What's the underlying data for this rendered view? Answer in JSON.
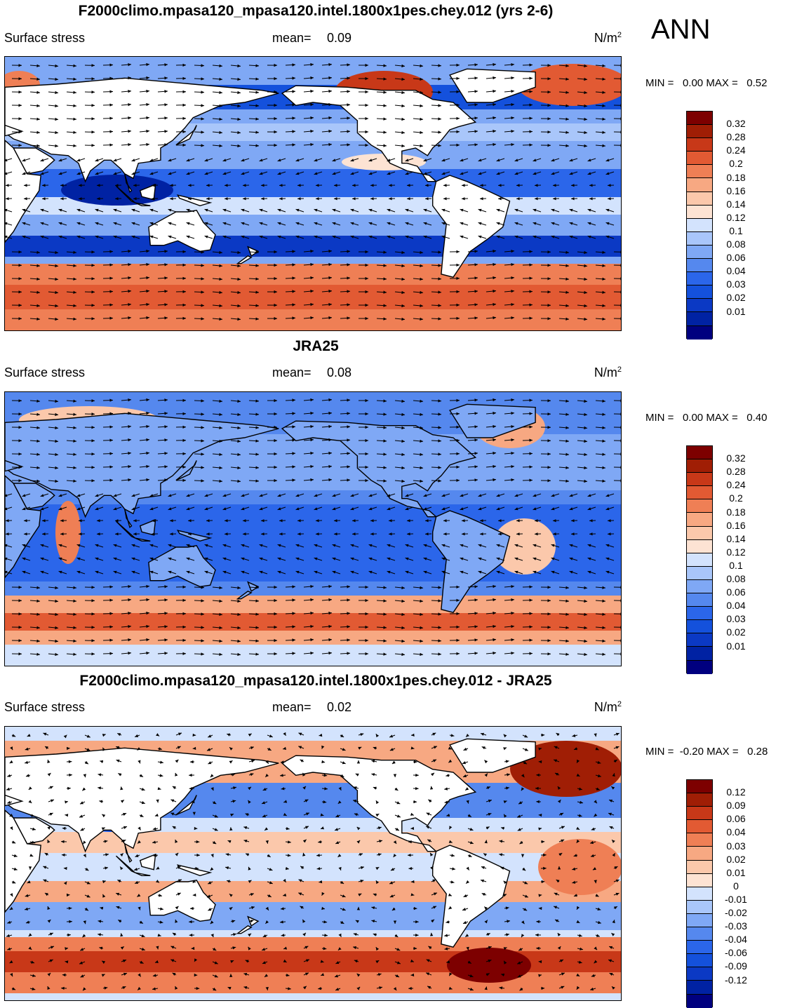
{
  "season": "ANN",
  "colors": {
    "abs": [
      "#00007f",
      "#0022a3",
      "#0b39c4",
      "#1451dc",
      "#2b66ea",
      "#5588ee",
      "#7fa8f5",
      "#a9c6fa",
      "#d3e3fd",
      "#fde3d3",
      "#fbc8ab",
      "#f7a882",
      "#ef7f55",
      "#e25a33",
      "#c83818",
      "#a01e05",
      "#7d0000"
    ],
    "diff": [
      "#00007f",
      "#0022a3",
      "#0b39c4",
      "#1451dc",
      "#2b66ea",
      "#5588ee",
      "#7fa8f5",
      "#a9c6fa",
      "#d3e3fd",
      "#fde3d3",
      "#fbc8ab",
      "#f7a882",
      "#ef7f55",
      "#e25a33",
      "#c83818",
      "#a01e05",
      "#7d0000"
    ],
    "land": "#ffffff"
  },
  "panels": [
    {
      "title": "F2000climo.mpasa120_mpasa120.intel.1800x1pes.chey.012 (yrs 2-6)",
      "label": "Surface stress",
      "mean_label": "mean=",
      "mean_value": "0.09",
      "units": "N/m",
      "units_sup": "2",
      "min_label": "MIN =",
      "min_value": "0.00",
      "max_label": "MAX =",
      "max_value": "0.52",
      "colorbar_labels": [
        "0.32",
        "0.28",
        "0.24",
        "0.2",
        "0.18",
        "0.16",
        "0.14",
        "0.12",
        "0.1",
        "0.08",
        "0.06",
        "0.04",
        "0.03",
        "0.02",
        "0.01"
      ],
      "kind": "abs"
    },
    {
      "title": "JRA25",
      "label": "Surface stress",
      "mean_label": "mean=",
      "mean_value": "0.08",
      "units": "N/m",
      "units_sup": "2",
      "min_label": "MIN =",
      "min_value": "0.00",
      "max_label": "MAX =",
      "max_value": "0.40",
      "colorbar_labels": [
        "0.32",
        "0.28",
        "0.24",
        "0.2",
        "0.18",
        "0.16",
        "0.14",
        "0.12",
        "0.1",
        "0.08",
        "0.06",
        "0.04",
        "0.03",
        "0.02",
        "0.01"
      ],
      "kind": "abs"
    },
    {
      "title": "F2000climo.mpasa120_mpasa120.intel.1800x1pes.chey.012 - JRA25",
      "label": "Surface stress",
      "mean_label": "mean=",
      "mean_value": "0.02",
      "units": "N/m",
      "units_sup": "2",
      "min_label": "MIN =",
      "min_value": "-0.20",
      "max_label": "MAX =",
      "max_value": "0.28",
      "colorbar_labels": [
        "0.12",
        "0.09",
        "0.06",
        "0.04",
        "0.03",
        "0.02",
        "0.01",
        "0",
        "-0.01",
        "-0.02",
        "-0.03",
        "-0.04",
        "-0.06",
        "-0.09",
        "-0.12"
      ],
      "kind": "diff"
    }
  ]
}
